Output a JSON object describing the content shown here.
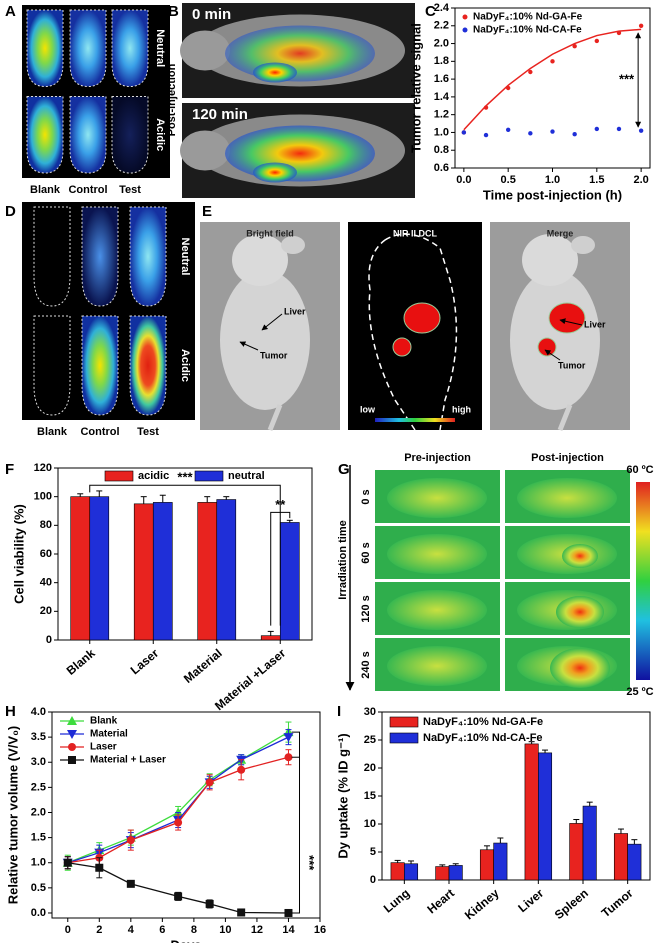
{
  "panel_labels": [
    "A",
    "B",
    "C",
    "D",
    "E",
    "F",
    "G",
    "H",
    "I"
  ],
  "images": {
    "A": {
      "rows": [
        "Neutral",
        "Acidic"
      ],
      "columns": [
        "Blank",
        "Control",
        "Test"
      ]
    },
    "B": {
      "times": [
        "0 min",
        "120 min"
      ],
      "side": "Post-injection"
    },
    "D": {
      "rows": [
        "Neutral",
        "Acidic"
      ],
      "columns": [
        "Blank",
        "Control",
        "Test"
      ]
    },
    "E": {
      "titles": [
        "Bright field",
        "NIR II DCL",
        "Merge"
      ],
      "organs": [
        "Liver",
        "Tumor"
      ],
      "scale": [
        "low",
        "high"
      ]
    },
    "G": {
      "columns": [
        "Pre-injection",
        "Post-injection"
      ],
      "axis": "Irradiation time",
      "times": [
        "0 s",
        "60 s",
        "120 s",
        "240 s"
      ],
      "scale": [
        "60 ºC",
        "25 ºC"
      ]
    }
  },
  "chart_data": [
    {
      "type": "scatter",
      "label": "C",
      "x": [
        0,
        0.25,
        0.5,
        0.75,
        1,
        1.25,
        1.5,
        1.75,
        2
      ],
      "series": [
        {
          "name": "NaDyF₄:10% Nd-GA-Fe",
          "color": "#e8231f",
          "values": [
            1.0,
            1.28,
            1.5,
            1.68,
            1.8,
            1.97,
            2.03,
            2.12,
            2.2
          ],
          "fit": [
            1.03,
            1.3,
            1.53,
            1.72,
            1.88,
            2.0,
            2.09,
            2.14,
            2.16
          ]
        },
        {
          "name": "NaDyF₄:10% Nd-CA-Fe",
          "color": "#1f2fd8",
          "values": [
            1.0,
            0.97,
            1.03,
            0.99,
            1.01,
            0.98,
            1.04,
            1.04,
            1.02
          ]
        }
      ],
      "xlim": [
        -0.1,
        2.1
      ],
      "ylim": [
        0.6,
        2.4
      ],
      "xticks": [
        {
          "value": 0,
          "label": "0.0"
        },
        0.5,
        {
          "value": 1,
          "label": "1.0"
        },
        1.5,
        {
          "value": 2,
          "label": "2.0"
        }
      ],
      "yticks": [
        0.6,
        0.8,
        {
          "value": 1,
          "label": "1.0"
        },
        1.2,
        1.4,
        1.6,
        1.8,
        {
          "value": 2,
          "label": "2.0"
        },
        2.2,
        2.4
      ],
      "xlabel": "Time post-injection (h)",
      "ylabel": "Tumor relative signal",
      "annotations": [
        "***"
      ],
      "legend": "upper left"
    },
    {
      "type": "bar",
      "label": "F",
      "categories": [
        "Blank",
        "Laser",
        "Material",
        "Material +Laser"
      ],
      "series": [
        {
          "name": "acidic",
          "color": "#e8231f",
          "values": [
            100,
            95,
            96,
            3
          ],
          "errors": [
            2,
            5,
            4,
            3
          ]
        },
        {
          "name": "neutral",
          "color": "#1f2fd8",
          "values": [
            100,
            96,
            98,
            82
          ],
          "errors": [
            4,
            5,
            2,
            1.5
          ]
        }
      ],
      "ylim": [
        0,
        120
      ],
      "yticks": [
        0,
        20,
        40,
        60,
        80,
        100,
        120
      ],
      "ylabel": "Cell viability (%)",
      "annotations": [
        "***",
        "**"
      ],
      "legend": "upper center"
    },
    {
      "type": "line",
      "label": "H",
      "x": [
        0,
        2,
        4,
        7,
        9,
        11,
        14
      ],
      "series": [
        {
          "name": "Blank",
          "color": "#3ddc3d",
          "marker": "triangle-up",
          "values": [
            1.0,
            1.25,
            1.5,
            2.0,
            2.65,
            3.05,
            3.6
          ],
          "errors": [
            0.15,
            0.15,
            0.15,
            0.12,
            0.12,
            0.1,
            0.2
          ]
        },
        {
          "name": "Material",
          "color": "#1d2bd6",
          "marker": "triangle-down",
          "values": [
            1.0,
            1.2,
            1.45,
            1.85,
            2.6,
            3.05,
            3.5
          ],
          "errors": [
            0.12,
            0.15,
            0.15,
            0.15,
            0.12,
            0.1,
            0.15
          ]
        },
        {
          "name": "Laser",
          "color": "#e22222",
          "marker": "circle",
          "values": [
            1.0,
            1.1,
            1.45,
            1.8,
            2.6,
            2.85,
            3.1
          ],
          "errors": [
            0.12,
            0.15,
            0.2,
            0.15,
            0.15,
            0.2,
            0.15
          ]
        },
        {
          "name": "Material + Laser",
          "color": "#111111",
          "marker": "square",
          "values": [
            1.0,
            0.9,
            0.58,
            0.33,
            0.18,
            0.01,
            0.0
          ],
          "errors": [
            0.12,
            0.2,
            0.05,
            0.08,
            0.08,
            0.01,
            0.01
          ]
        }
      ],
      "xlim": [
        -1,
        16
      ],
      "ylim": [
        -0.1,
        4.0
      ],
      "xticks": [
        0,
        2,
        4,
        6,
        8,
        10,
        12,
        14,
        16
      ],
      "yticks": [
        {
          "value": 0,
          "label": "0.0"
        },
        0.5,
        {
          "value": 1,
          "label": "1.0"
        },
        1.5,
        {
          "value": 2,
          "label": "2.0"
        },
        2.5,
        {
          "value": 3,
          "label": "3.0"
        },
        3.5,
        {
          "value": 4,
          "label": "4.0"
        }
      ],
      "xlabel": "Days",
      "ylabel": "Relative tumor volume (V/V₀)",
      "annotations": [
        "***"
      ],
      "legend": "upper left"
    },
    {
      "type": "bar",
      "label": "I",
      "categories": [
        "Lung",
        "Heart",
        "Kidney",
        "Liver",
        "Spleen",
        "Tumor"
      ],
      "series": [
        {
          "name": "NaDyF₄:10% Nd-GA-Fe",
          "color": "#e8231f",
          "values": [
            3.1,
            2.4,
            5.4,
            24.3,
            10.1,
            8.3
          ],
          "errors": [
            0.4,
            0.3,
            0.7,
            0.4,
            0.7,
            0.8
          ]
        },
        {
          "name": "NaDyF₄:10% Nd-CA-Fe",
          "color": "#1f2fd8",
          "values": [
            2.9,
            2.6,
            6.6,
            22.7,
            13.2,
            6.4
          ],
          "errors": [
            0.5,
            0.3,
            0.9,
            0.5,
            0.7,
            0.8
          ]
        }
      ],
      "ylim": [
        0,
        30
      ],
      "yticks": [
        0,
        5,
        10,
        15,
        20,
        25,
        30
      ],
      "ylabel": "Dy uptake (% ID g⁻¹)",
      "legend": "upper left"
    }
  ]
}
